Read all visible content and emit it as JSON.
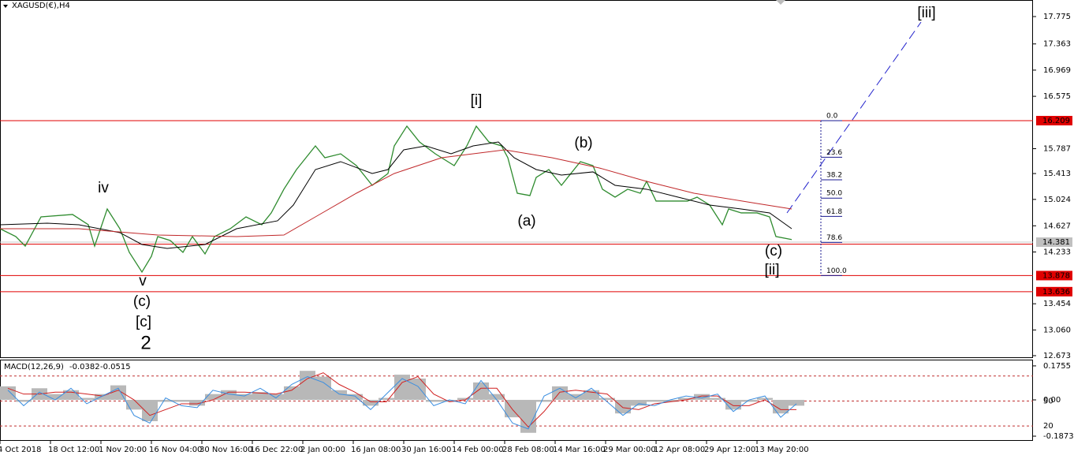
{
  "chart_data": [
    {
      "type": "price",
      "title": "XAGUSD(€),H4",
      "xlim": [
        0,
        327.5
      ],
      "xticks": [
        {
          "value": 0,
          "label": "4 Oct 2018"
        },
        {
          "value": 16,
          "label": "18 Oct 12:00"
        },
        {
          "value": 32,
          "label": "1 Nov 20:00"
        },
        {
          "value": 48,
          "label": "16 Nov 04:00"
        },
        {
          "value": 64,
          "label": "30 Nov 16:00"
        },
        {
          "value": 80,
          "label": "16 Dec 22:00"
        },
        {
          "value": 96,
          "label": "2 Jan 00:00"
        },
        {
          "value": 112,
          "label": "16 Jan 08:00"
        },
        {
          "value": 128,
          "label": "30 Jan 16:00"
        },
        {
          "value": 144,
          "label": "14 Feb 00:00"
        },
        {
          "value": 160,
          "label": "28 Feb 08:00"
        },
        {
          "value": 176,
          "label": "14 Mar 16:00"
        },
        {
          "value": 192,
          "label": "29 Mar 00:00"
        },
        {
          "value": 208,
          "label": "12 Apr 08:00"
        },
        {
          "value": 224,
          "label": "29 Apr 12:00"
        },
        {
          "value": 240,
          "label": "13 May 20:00"
        }
      ],
      "ylim": [
        12.649,
        18.024
      ],
      "yticks": [
        17.775,
        17.363,
        16.969,
        16.575,
        15.787,
        15.413,
        15.024,
        14.627,
        14.233,
        13.454,
        {
          "value": 13.06,
          "label": "13.060"
        },
        12.673
      ],
      "levels": [
        16.209,
        13.878,
        13.636
      ],
      "support_line": 14.35,
      "last_price": 14.381,
      "series": [
        {
          "color": "#2e8b2e",
          "x": [
            0,
            5,
            8,
            13,
            23,
            28,
            30,
            34,
            38,
            41,
            45,
            48,
            50,
            54,
            58,
            61,
            65,
            68,
            73,
            78,
            83,
            86,
            90,
            94,
            98,
            100,
            103,
            108,
            113,
            118,
            123,
            125,
            129,
            133,
            138,
            144,
            148,
            151,
            155,
            159,
            161,
            164,
            168,
            170,
            174,
            178,
            180,
            184,
            188,
            191,
            195,
            199,
            203,
            205,
            208,
            213,
            218,
            221,
            225,
            229,
            231,
            235,
            240,
            244,
            246,
            251
          ],
          "values": [
            14.583,
            14.465,
            14.322,
            14.761,
            14.797,
            14.643,
            14.322,
            14.88,
            14.583,
            14.227,
            13.931,
            14.168,
            14.465,
            14.405,
            14.227,
            14.465,
            14.204,
            14.465,
            14.583,
            14.761,
            14.643,
            14.821,
            15.177,
            15.473,
            15.71,
            15.829,
            15.651,
            15.71,
            15.532,
            15.236,
            15.414,
            15.829,
            16.126,
            15.888,
            15.71,
            15.532,
            15.829,
            16.126,
            15.888,
            15.829,
            15.651,
            15.117,
            15.082,
            15.355,
            15.473,
            15.236,
            15.355,
            15.592,
            15.532,
            15.177,
            15.058,
            15.177,
            15.117,
            15.295,
            14.999,
            14.999,
            14.999,
            15.058,
            14.939,
            14.643,
            14.88,
            14.821,
            14.821,
            14.761,
            14.465,
            14.42
          ]
        },
        {
          "color": "#000000",
          "x": [
            0,
            15,
            25,
            38,
            45,
            53,
            65,
            75,
            88,
            93,
            100,
            108,
            118,
            123,
            128,
            135,
            143,
            150,
            158,
            163,
            170,
            178,
            188,
            195,
            205,
            215,
            225,
            235,
            244,
            251
          ],
          "values": [
            14.643,
            14.666,
            14.643,
            14.524,
            14.346,
            14.287,
            14.346,
            14.583,
            14.702,
            14.939,
            15.473,
            15.592,
            15.414,
            15.473,
            15.77,
            15.829,
            15.71,
            15.829,
            15.888,
            15.651,
            15.473,
            15.39,
            15.438,
            15.236,
            15.177,
            15.058,
            14.939,
            14.88,
            14.821,
            14.583
          ]
        },
        {
          "color": "#c0282a",
          "x": [
            0,
            25,
            50,
            75,
            90,
            100,
            113,
            125,
            140,
            160,
            175,
            190,
            205,
            220,
            240,
            251
          ],
          "values": [
            14.583,
            14.583,
            14.488,
            14.465,
            14.488,
            14.761,
            15.117,
            15.414,
            15.651,
            15.77,
            15.651,
            15.497,
            15.295,
            15.117,
            14.963,
            14.88
          ]
        }
      ],
      "fibonacci": [
        {
          "value": 0,
          "label": "0.0"
        },
        23.6,
        38.2,
        {
          "value": 50,
          "label": "50.0"
        },
        61.8,
        78.6,
        {
          "value": 100,
          "label": "100.0"
        }
      ],
      "wave_labels": [
        {
          "text": "iv",
          "color": "#e020e0"
        },
        {
          "text": "v",
          "color": "#e020e0"
        },
        {
          "text": "(c)",
          "color": "#1a1ad0"
        },
        {
          "text": "[c]",
          "color": "#1f8a1f"
        },
        {
          "text": "2",
          "color": "#e01010"
        },
        {
          "text": "[i]",
          "color": "#1f8a1f"
        },
        {
          "text": "(b)",
          "color": "#1a1ad0"
        },
        {
          "text": "(a)",
          "color": "#1a1ad0"
        },
        {
          "text": "(c)",
          "color": "#1a1ad0"
        },
        {
          "text": "[ii]",
          "color": "#1f8a1f"
        },
        {
          "text": "[iii]",
          "color": "#1f8a1f"
        }
      ]
    },
    {
      "type": "macd",
      "title": "MACD(12,26,9)",
      "readout": [
        -0.0382,
        -0.0515
      ],
      "ylim": [
        -0.2075,
        0.2037
      ],
      "yticks": [
        0.1755,
        {
          "value": 0,
          "label": "0.00"
        },
        -0.1873
      ],
      "y2lim": [
        3.1,
        98.75
      ],
      "y2ticks": [
        50,
        20
      ],
      "y2levels": [
        80,
        50,
        20
      ],
      "x": [
        0,
        5,
        10,
        15,
        20,
        25,
        30,
        35,
        40,
        45,
        50,
        55,
        60,
        65,
        70,
        75,
        80,
        85,
        90,
        95,
        100,
        105,
        110,
        115,
        120,
        125,
        130,
        135,
        140,
        145,
        150,
        155,
        160,
        165,
        170,
        175,
        180,
        185,
        190,
        195,
        200,
        205,
        210,
        215,
        220,
        225,
        230,
        235,
        240,
        245,
        250
      ],
      "series": [
        {
          "color": "#b8b8b8",
          "values": [
            0.07,
            -0.01,
            0.06,
            0.03,
            0.05,
            0.01,
            0.03,
            0.075,
            -0.05,
            -0.11,
            -0.01,
            -0.01,
            -0.03,
            0.03,
            0.05,
            0.03,
            0.04,
            0.03,
            0.07,
            0.15,
            0.12,
            0.05,
            0.03,
            -0.03,
            0.01,
            0.13,
            0.11,
            -0.01,
            -0.01,
            0.01,
            0.09,
            0.03,
            -0.09,
            -0.17,
            -0.01,
            0.07,
            0.03,
            0.05,
            0.01,
            -0.07,
            -0.03,
            -0.01,
            -0.01,
            0.01,
            0.03,
            0.01,
            -0.05,
            -0.01,
            0.01,
            -0.07,
            -0.03
          ]
        },
        {
          "color": "#d02020",
          "values": [
            0.06,
            0.03,
            0.03,
            0.04,
            0.04,
            0.03,
            0.02,
            0.05,
            0.0,
            -0.08,
            -0.05,
            -0.02,
            -0.02,
            0.0,
            0.04,
            0.04,
            0.035,
            0.03,
            0.05,
            0.11,
            0.14,
            0.08,
            0.04,
            -0.01,
            -0.01,
            0.09,
            0.12,
            0.03,
            -0.01,
            0.0,
            0.06,
            0.06,
            -0.05,
            -0.14,
            -0.06,
            0.04,
            0.05,
            0.04,
            0.03,
            -0.04,
            -0.05,
            -0.02,
            -0.01,
            0.0,
            0.02,
            0.02,
            -0.03,
            -0.03,
            0.0,
            -0.05,
            -0.05
          ]
        },
        {
          "color": "#3a8ee0",
          "values": [
            0.05,
            -0.03,
            0.04,
            0.0,
            0.06,
            -0.02,
            0.02,
            0.06,
            -0.08,
            -0.12,
            0.01,
            -0.03,
            -0.04,
            0.05,
            0.03,
            0.02,
            0.06,
            0.01,
            0.08,
            0.12,
            0.09,
            0.03,
            0.02,
            -0.05,
            0.03,
            0.11,
            0.07,
            -0.03,
            0.0,
            -0.02,
            0.1,
            0.0,
            -0.12,
            -0.15,
            0.02,
            0.06,
            0.01,
            0.06,
            -0.01,
            -0.08,
            -0.02,
            -0.03,
            0.0,
            0.02,
            0.01,
            0.03,
            -0.06,
            0.0,
            0.02,
            -0.09,
            -0.02
          ]
        }
      ]
    }
  ]
}
